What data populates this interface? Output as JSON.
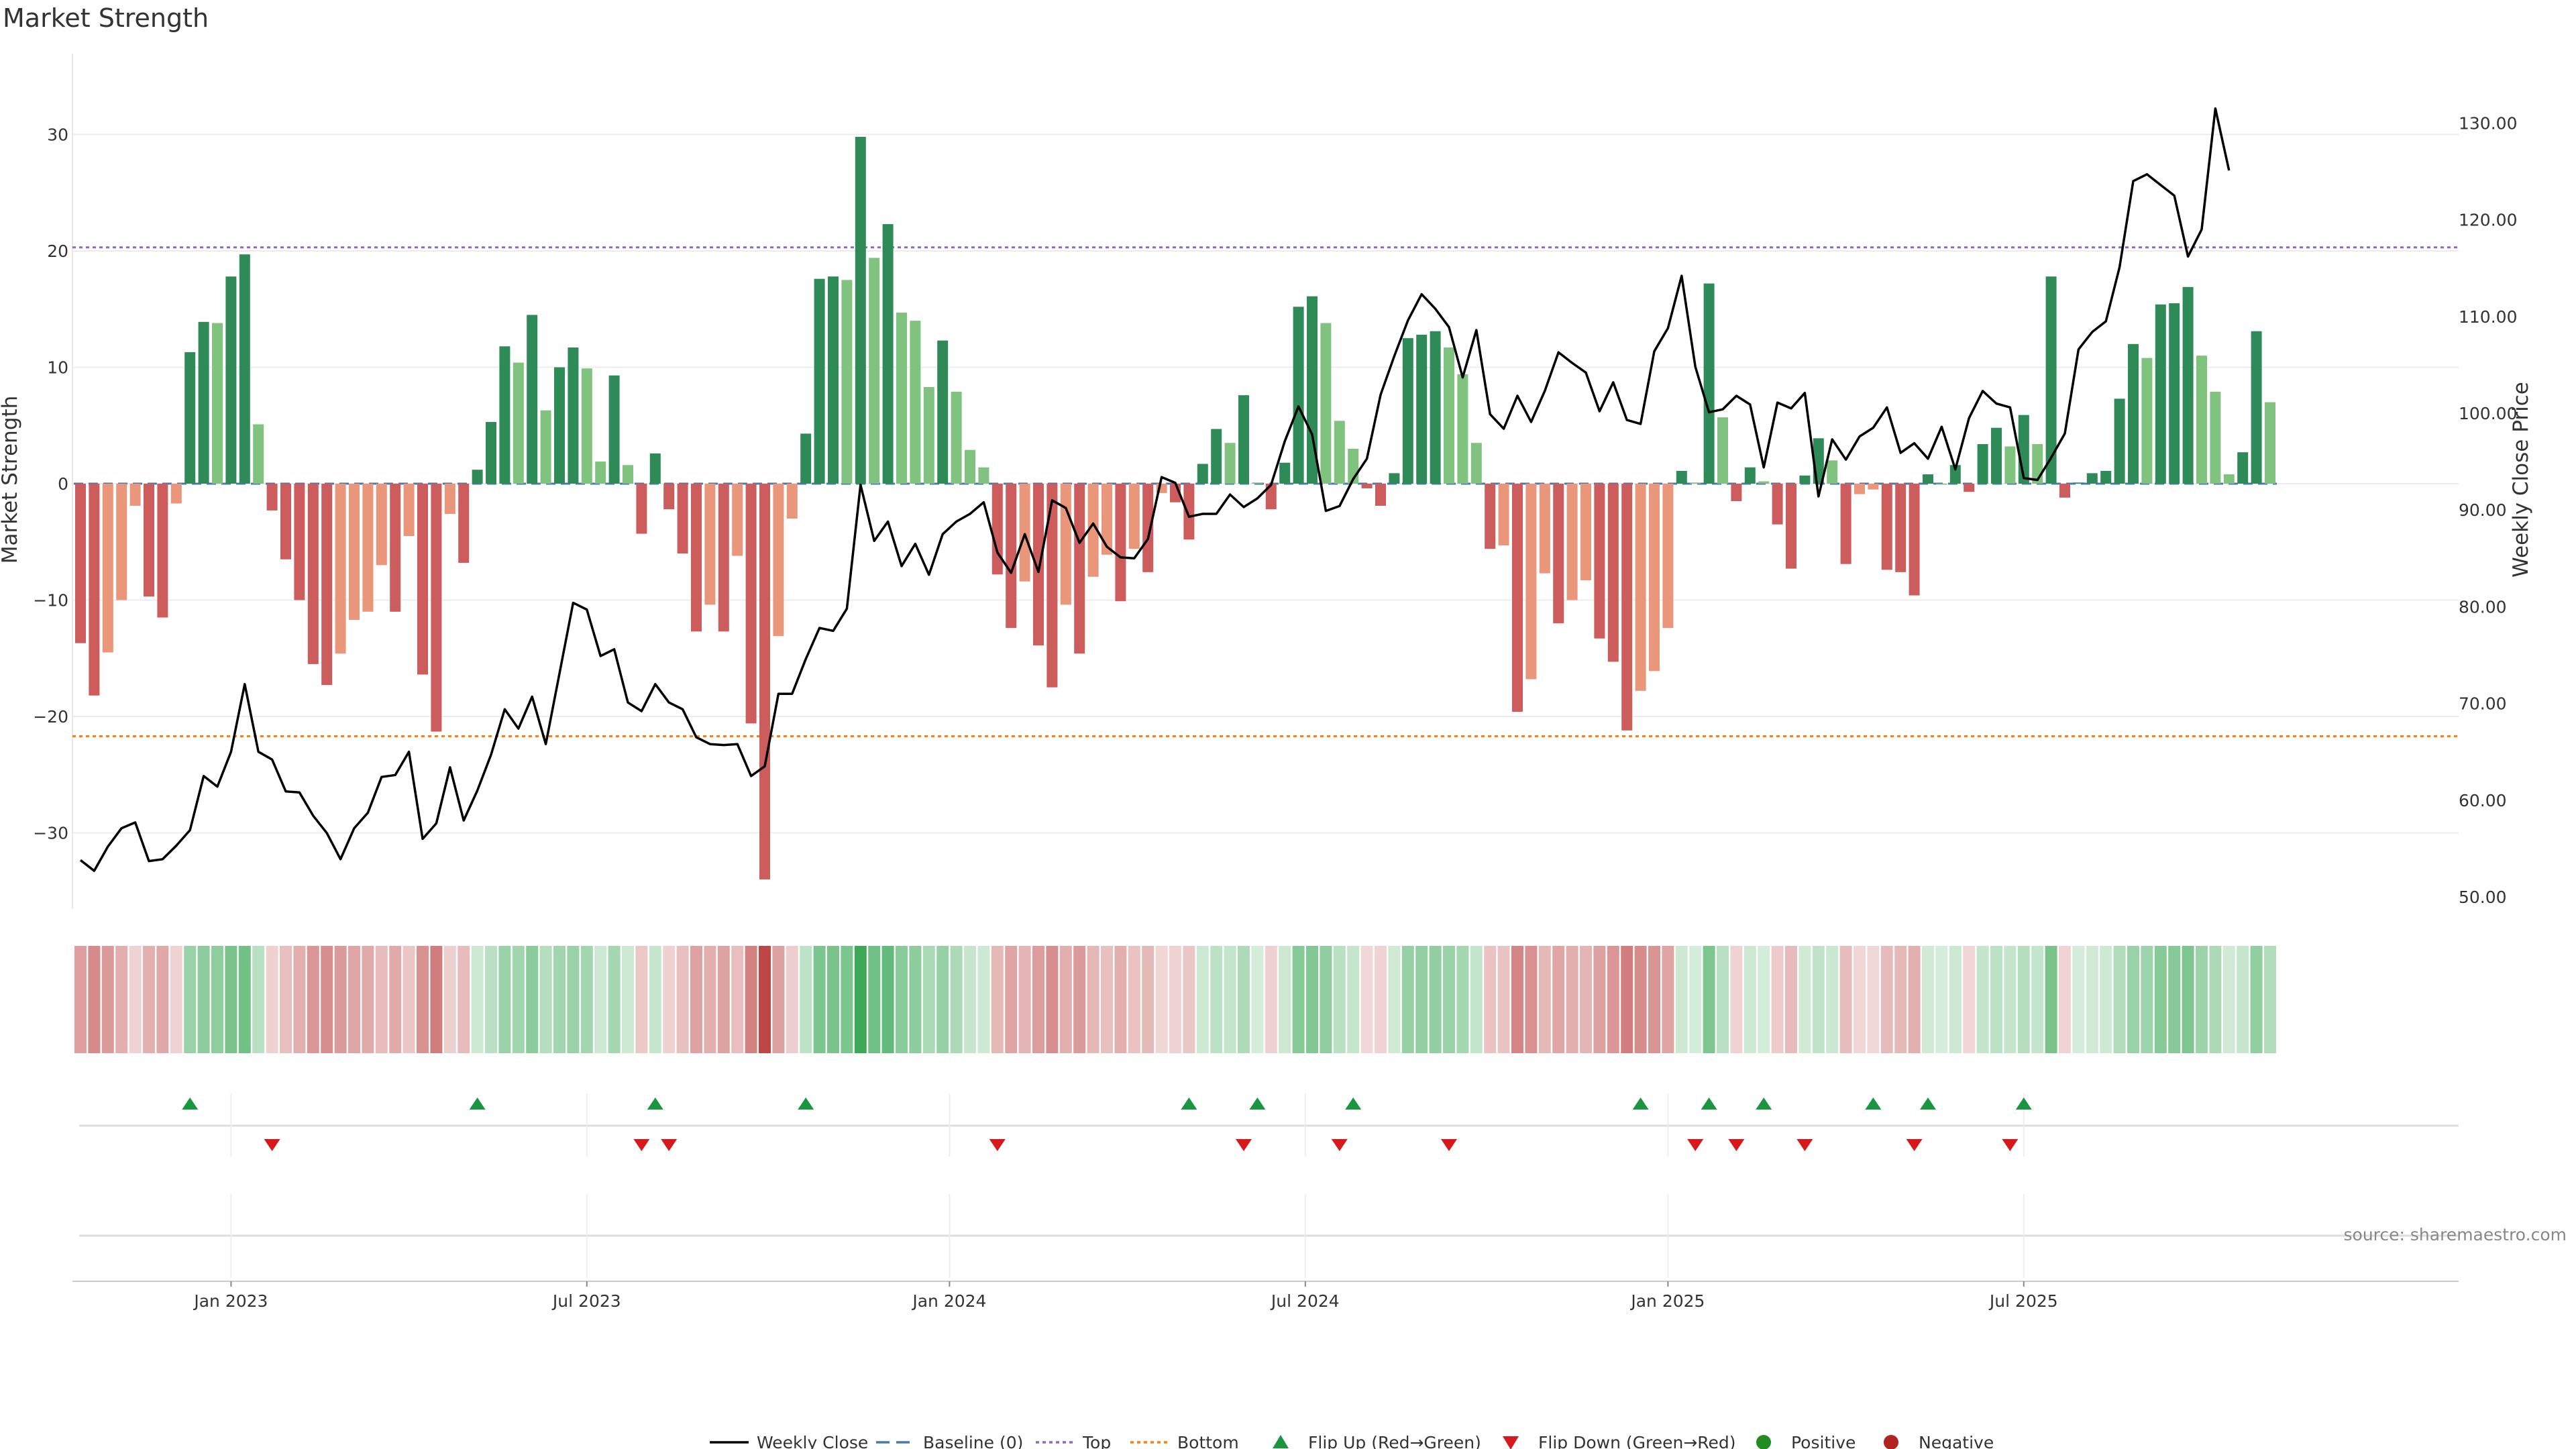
{
  "chart_data": {
    "type": "bar",
    "title": "Market Strength",
    "ylabel_left": "Market Strength",
    "ylabel_right": "Weekly Close Price",
    "source": "source: sharemaestro.com",
    "y_left_ticks": [
      -30,
      -20,
      -10,
      0,
      10,
      20,
      30
    ],
    "y_left_range": [
      -38,
      38
    ],
    "y_right_ticks": [
      "50.00",
      "60.00",
      "70.00",
      "80.00",
      "90.00",
      "100.00",
      "110.00",
      "120.00",
      "130.00"
    ],
    "y_right_range": [
      48,
      135
    ],
    "x_ticks": [
      {
        "label": "Jan 2023",
        "week": 11
      },
      {
        "label": "Jul 2023",
        "week": 37
      },
      {
        "label": "Jan 2024",
        "week": 63.5
      },
      {
        "label": "Jul 2024",
        "week": 89.5
      },
      {
        "label": "Jan 2025",
        "week": 116
      },
      {
        "label": "Jul 2025",
        "week": 142
      }
    ],
    "thresholds": {
      "top": 20.3,
      "bottom": -21.7,
      "baseline": 0
    },
    "strength": [
      -13.7,
      -18.2,
      -14.5,
      -10.0,
      -1.9,
      -9.7,
      -11.5,
      -1.7,
      11.3,
      13.9,
      13.8,
      17.8,
      19.7,
      5.1,
      -2.3,
      -6.5,
      -10.0,
      -15.5,
      -17.3,
      -14.6,
      -11.7,
      -11.0,
      -7.0,
      -11.0,
      -4.5,
      -16.4,
      -21.3,
      -2.6,
      -6.8,
      1.2,
      5.3,
      11.8,
      10.4,
      14.5,
      6.3,
      10.0,
      11.7,
      9.9,
      1.9,
      9.3,
      1.6,
      -4.3,
      2.6,
      -2.2,
      -6.0,
      -12.7,
      -10.4,
      -12.7,
      -6.2,
      -20.6,
      -34.0,
      -13.1,
      -3.0,
      4.3,
      17.6,
      17.8,
      17.5,
      29.8,
      19.4,
      22.3,
      14.7,
      14.0,
      8.3,
      12.3,
      7.9,
      2.9,
      1.4,
      -7.8,
      -12.4,
      -8.4,
      -13.9,
      -17.5,
      -10.4,
      -14.6,
      -8.0,
      -6.1,
      -10.1,
      -5.6,
      -7.6,
      -0.8,
      -1.6,
      -4.8,
      1.7,
      4.7,
      3.5,
      7.6,
      0.1,
      -2.2,
      1.8,
      15.2,
      16.1,
      13.8,
      5.4,
      3.0,
      -0.4,
      -1.9,
      0.9,
      12.5,
      12.8,
      13.1,
      11.7,
      9.4,
      3.5,
      -5.6,
      -5.3,
      -19.6,
      -16.8,
      -7.7,
      -12.0,
      -10.0,
      -8.3,
      -13.3,
      -15.3,
      -21.2,
      -17.8,
      -16.1,
      -12.4,
      1.1,
      0.1,
      17.2,
      5.7,
      -1.5,
      1.4,
      0.2,
      -3.5,
      -7.3,
      0.7,
      3.9,
      2.0,
      -6.9,
      -0.9,
      -0.5,
      -7.4,
      -7.6,
      -9.6,
      0.8,
      0.0,
      1.6,
      -0.7,
      3.4,
      4.8,
      3.2,
      5.9,
      3.4,
      17.8,
      -1.2,
      0.1,
      0.9,
      1.1,
      7.3,
      12.0,
      10.8,
      15.4,
      15.5,
      16.9,
      11.0,
      7.9,
      0.8,
      2.7,
      13.1,
      7.0
    ],
    "weekly_close": [
      53.8,
      52.7,
      55.2,
      57.1,
      57.7,
      53.7,
      53.9,
      55.3,
      56.9,
      62.5,
      61.4,
      65.0,
      72.0,
      65.0,
      64.2,
      60.9,
      60.8,
      58.4,
      56.6,
      53.9,
      57.1,
      58.7,
      62.4,
      62.6,
      65.0,
      56.0,
      57.6,
      63.4,
      57.9,
      61.0,
      64.7,
      69.4,
      67.4,
      70.7,
      65.8,
      73.1,
      80.4,
      79.7,
      74.9,
      75.6,
      70.1,
      69.2,
      72.0,
      70.1,
      69.4,
      66.5,
      65.8,
      65.7,
      65.8,
      62.5,
      63.5,
      71.0,
      71.0,
      74.6,
      77.8,
      77.5,
      79.8,
      92.6,
      86.8,
      88.8,
      84.2,
      86.5,
      83.3,
      87.5,
      88.8,
      89.6,
      90.8,
      85.6,
      83.5,
      87.5,
      83.6,
      91.0,
      90.2,
      86.6,
      88.6,
      86.2,
      85.1,
      85.0,
      87.0,
      93.4,
      92.8,
      89.3,
      89.6,
      89.6,
      91.6,
      90.3,
      91.2,
      92.6,
      97.1,
      100.7,
      97.8,
      89.9,
      90.4,
      93.2,
      95.3,
      101.9,
      105.9,
      109.6,
      112.3,
      110.8,
      108.9,
      103.7,
      108.6,
      99.9,
      98.4,
      101.8,
      99.1,
      102.3,
      106.3,
      105.2,
      104.2,
      100.2,
      103.2,
      99.3,
      98.9,
      106.4,
      108.8,
      114.2,
      104.8,
      100.1,
      100.4,
      101.8,
      100.9,
      94.4,
      101.1,
      100.5,
      102.1,
      91.4,
      97.3,
      95.2,
      97.6,
      98.5,
      100.6,
      95.9,
      96.9,
      95.3,
      98.6,
      94.2,
      99.5,
      102.3,
      101.0,
      100.6,
      93.3,
      93.1,
      95.4,
      97.9,
      106.6,
      108.4,
      109.5,
      115.1,
      124.0,
      124.7,
      123.6,
      122.5,
      116.2,
      119.0,
      131.5,
      125.1
    ],
    "flip_up_weeks": [
      8,
      29,
      42,
      53,
      81,
      86,
      93,
      114,
      119,
      123,
      131,
      135,
      142
    ],
    "flip_down_weeks": [
      14,
      41,
      43,
      67,
      85,
      92,
      100,
      118,
      121,
      126,
      134,
      141
    ],
    "legend": [
      "Weekly Close",
      "Baseline (0)",
      "Top",
      "Bottom",
      "Flip Up (Red→Green)",
      "Flip Down (Green→Red)",
      "Positive",
      "Negative"
    ],
    "colors": {
      "bar_green_dark": "#2e8b57",
      "bar_green_light": "#7fc37f",
      "bar_red_dark": "#cd5c5c",
      "bar_red_light": "#e9967a",
      "price_line": "#000000",
      "baseline": "#4a78b0",
      "top_line": "#9467bd",
      "bottom_line": "#ff7f0e",
      "flip_up": "#1a9641",
      "flip_down": "#d7191c",
      "positive": "#228b22",
      "negative": "#b22222"
    }
  }
}
